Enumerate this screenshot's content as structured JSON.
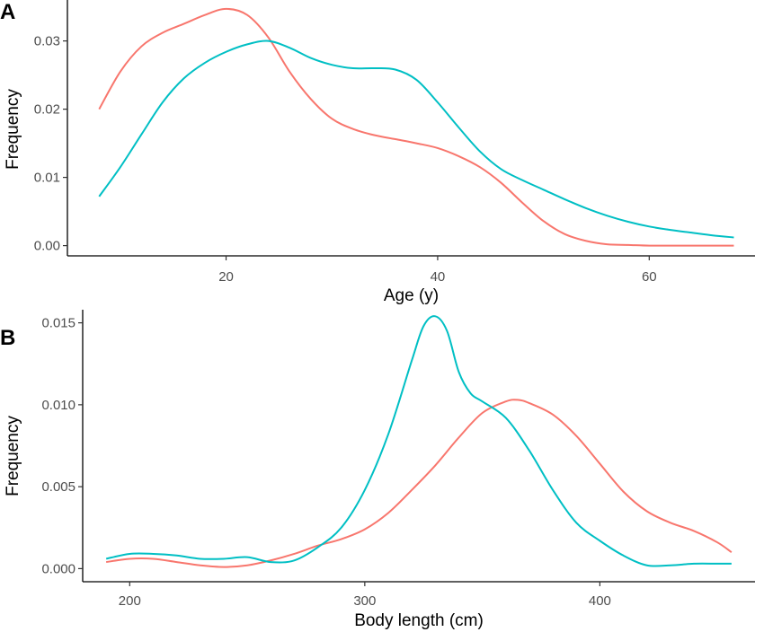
{
  "chart_data": [
    {
      "type": "line",
      "panel_label": "A",
      "xlabel": "Age (y)",
      "ylabel": "Frequency",
      "xlim": [
        5,
        70
      ],
      "ylim": [
        -0.0015,
        0.036
      ],
      "x_ticks": [
        20,
        40,
        60
      ],
      "x_tick_labels": [
        "20",
        "40",
        "60"
      ],
      "y_ticks": [
        0,
        0.01,
        0.02,
        0.03
      ],
      "y_tick_labels": [
        "0.00",
        "0.01",
        "0.02",
        "0.03"
      ],
      "grid": false,
      "legend": "none",
      "series": [
        {
          "color": "#F8766D",
          "x": [
            8,
            10,
            12,
            14,
            16,
            18,
            20,
            22,
            24,
            26,
            28,
            30,
            32,
            34,
            36,
            38,
            40,
            42,
            44,
            46,
            48,
            50,
            52,
            54,
            56,
            58,
            60,
            62,
            64,
            66,
            68
          ],
          "y": [
            0.02,
            0.0255,
            0.0292,
            0.0312,
            0.0325,
            0.0338,
            0.0347,
            0.0338,
            0.0305,
            0.0255,
            0.0215,
            0.0186,
            0.0171,
            0.0162,
            0.0156,
            0.015,
            0.0143,
            0.0131,
            0.0115,
            0.0092,
            0.0063,
            0.0036,
            0.0017,
            0.0007,
            0.0002,
            0.0001,
            0.0,
            0.0,
            0.0,
            0.0,
            0.0
          ]
        },
        {
          "color": "#00BFC4",
          "x": [
            8,
            10,
            12,
            14,
            16,
            18,
            20,
            22,
            24,
            26,
            28,
            30,
            32,
            34,
            36,
            38,
            40,
            42,
            44,
            46,
            48,
            50,
            52,
            54,
            56,
            58,
            60,
            62,
            64,
            66,
            68
          ],
          "y": [
            0.0072,
            0.0115,
            0.0163,
            0.021,
            0.0245,
            0.0268,
            0.0284,
            0.0295,
            0.03,
            0.029,
            0.0275,
            0.0265,
            0.026,
            0.026,
            0.0258,
            0.0243,
            0.021,
            0.0173,
            0.0138,
            0.0112,
            0.0096,
            0.0082,
            0.0068,
            0.0055,
            0.0044,
            0.0035,
            0.0028,
            0.0023,
            0.0019,
            0.0015,
            0.0012
          ]
        }
      ]
    },
    {
      "type": "line",
      "panel_label": "B",
      "xlabel": "Body length (cm)",
      "ylabel": "Frequency",
      "xlim": [
        180,
        466
      ],
      "ylim": [
        -0.0008,
        0.0158
      ],
      "x_ticks": [
        200,
        300,
        400
      ],
      "x_tick_labels": [
        "200",
        "300",
        "400"
      ],
      "y_ticks": [
        0,
        0.005,
        0.01,
        0.015
      ],
      "y_tick_labels": [
        "0.000",
        "0.005",
        "0.010",
        "0.015"
      ],
      "grid": false,
      "legend": "none",
      "series": [
        {
          "color": "#F8766D",
          "x": [
            190,
            200,
            210,
            220,
            230,
            240,
            250,
            260,
            270,
            280,
            290,
            300,
            310,
            320,
            330,
            340,
            350,
            360,
            365,
            370,
            380,
            390,
            400,
            410,
            420,
            430,
            440,
            450,
            456
          ],
          "y": [
            0.0004,
            0.0006,
            0.0006,
            0.0004,
            0.0002,
            0.0001,
            0.0002,
            0.0005,
            0.0009,
            0.0014,
            0.0018,
            0.0024,
            0.0034,
            0.0048,
            0.0063,
            0.008,
            0.0095,
            0.0102,
            0.0103,
            0.0101,
            0.0094,
            0.0081,
            0.0064,
            0.0047,
            0.0035,
            0.0028,
            0.0023,
            0.0016,
            0.001
          ]
        },
        {
          "color": "#00BFC4",
          "x": [
            190,
            200,
            210,
            220,
            230,
            240,
            250,
            260,
            270,
            280,
            290,
            300,
            310,
            320,
            325,
            330,
            335,
            340,
            345,
            350,
            360,
            370,
            380,
            390,
            400,
            410,
            420,
            430,
            440,
            450,
            456
          ],
          "y": [
            0.0006,
            0.0009,
            0.0009,
            0.0008,
            0.0006,
            0.0006,
            0.0007,
            0.0004,
            0.0005,
            0.0013,
            0.0025,
            0.0048,
            0.0082,
            0.0127,
            0.0148,
            0.0154,
            0.0145,
            0.012,
            0.0107,
            0.0102,
            0.0092,
            0.0072,
            0.0048,
            0.0028,
            0.0017,
            0.0008,
            0.0002,
            0.0002,
            0.0003,
            0.0003,
            0.0003
          ]
        }
      ]
    }
  ]
}
